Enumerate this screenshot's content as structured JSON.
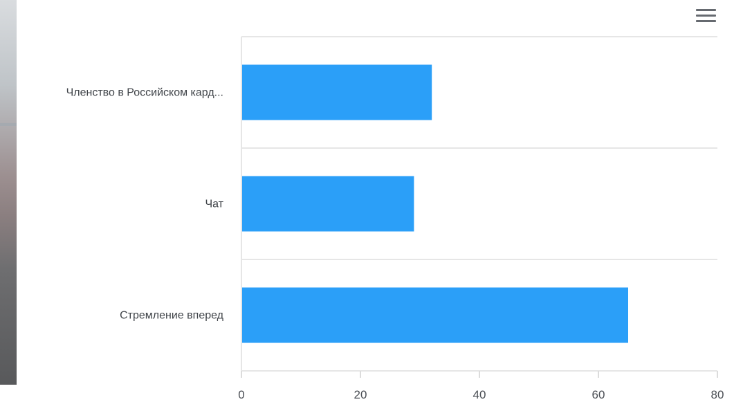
{
  "toolbar": {
    "menu_icon": "hamburger-menu-icon"
  },
  "chart_data": {
    "type": "bar",
    "orientation": "horizontal",
    "categories": [
      "Членство в Российском кард...",
      "Чат",
      "Стремление вперед"
    ],
    "values": [
      32,
      29,
      65
    ],
    "xlim": [
      0,
      80
    ],
    "xticks": [
      "0",
      "20",
      "40",
      "60",
      "80"
    ],
    "grid": "horizontal category separators",
    "bar_color": "#2b9ff8"
  }
}
